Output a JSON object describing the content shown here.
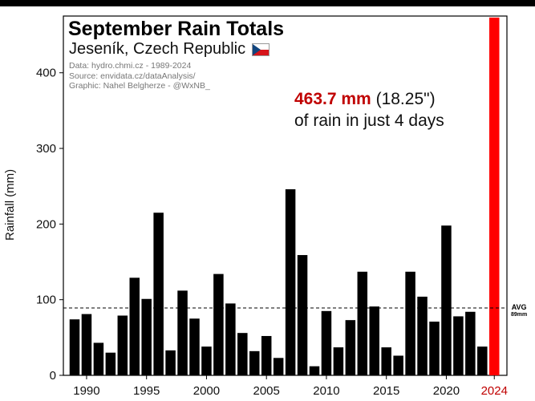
{
  "chart_data": {
    "type": "bar",
    "title": "September Rain Totals",
    "subtitle": "Jeseník, Czech Republic",
    "credits": [
      "Data: hydro.chmi.cz - 1989-2024",
      "Source: envidata.cz/dataAnalysis/",
      "Graphic: Nahel Belgherze - @WxNB_"
    ],
    "ylabel": "Rainfall (mm)",
    "ylim": [
      0,
      475
    ],
    "yticks": [
      0,
      100,
      200,
      300,
      400
    ],
    "xticks": [
      1990,
      1995,
      2000,
      2005,
      2010,
      2015,
      2020,
      2024
    ],
    "highlight_year": 2024,
    "colors": {
      "bar": "#000000",
      "highlight": "#ff0000",
      "highlight_text": "#c00000"
    },
    "categories": [
      1989,
      1990,
      1991,
      1992,
      1993,
      1994,
      1995,
      1996,
      1997,
      1998,
      1999,
      2000,
      2001,
      2002,
      2003,
      2004,
      2005,
      2006,
      2007,
      2008,
      2009,
      2010,
      2011,
      2012,
      2013,
      2014,
      2015,
      2016,
      2017,
      2018,
      2019,
      2020,
      2021,
      2022,
      2023,
      2024
    ],
    "values": [
      74,
      81,
      43,
      30,
      79,
      129,
      101,
      215,
      33,
      112,
      75,
      38,
      134,
      95,
      56,
      32,
      52,
      23,
      246,
      159,
      12,
      85,
      37,
      73,
      137,
      91,
      37,
      26,
      137,
      104,
      71,
      198,
      78,
      84,
      38,
      473
    ],
    "average": {
      "value": 89,
      "label": "AVG",
      "sublabel": "89mm"
    },
    "annotation": {
      "amount": "463.7 mm",
      "inches": "(18.25\")",
      "line2": "of rain in just 4 days"
    }
  }
}
